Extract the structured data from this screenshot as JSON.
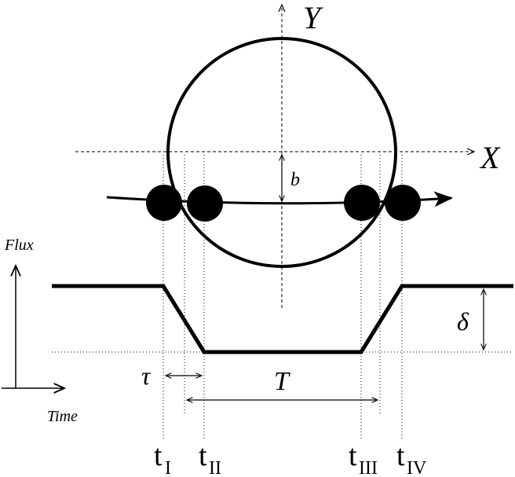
{
  "axes": {
    "x_label": "X",
    "y_label": "Y"
  },
  "impact_parameter_label": "b",
  "flux_axis_label": "Flux",
  "time_axis_label": "Time",
  "depth_label": "δ",
  "ingress_duration_label": "τ",
  "total_duration_label": "T",
  "contacts": [
    {
      "main": "t",
      "sub": "I"
    },
    {
      "main": "t",
      "sub": "II"
    },
    {
      "main": "t",
      "sub": "III"
    },
    {
      "main": "t",
      "sub": "IV"
    }
  ]
}
